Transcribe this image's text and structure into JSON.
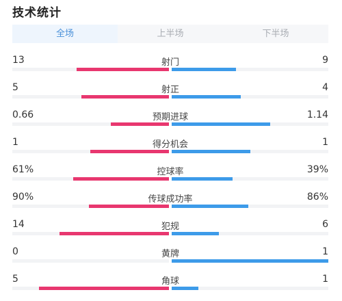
{
  "title": "技术统计",
  "tabs": [
    {
      "label": "全场",
      "active": true
    },
    {
      "label": "上半场",
      "active": false
    },
    {
      "label": "下半场",
      "active": false
    }
  ],
  "colors": {
    "home": "#e8376f",
    "away": "#3d9be9",
    "tab_active": "#4a90d9"
  },
  "stats": [
    {
      "label": "射门",
      "home": "13",
      "away": "9",
      "home_fill": 0.59,
      "away_fill": 0.41
    },
    {
      "label": "射正",
      "home": "5",
      "away": "4",
      "home_fill": 0.56,
      "away_fill": 0.44
    },
    {
      "label": "预期进球",
      "home": "0.66",
      "away": "1.14",
      "home_fill": 0.37,
      "away_fill": 0.63
    },
    {
      "label": "得分机会",
      "home": "1",
      "away": "1",
      "home_fill": 0.5,
      "away_fill": 0.5
    },
    {
      "label": "控球率",
      "home": "61%",
      "away": "39%",
      "home_fill": 0.61,
      "away_fill": 0.39
    },
    {
      "label": "传球成功率",
      "home": "90%",
      "away": "86%",
      "home_fill": 0.51,
      "away_fill": 0.49
    },
    {
      "label": "犯规",
      "home": "14",
      "away": "6",
      "home_fill": 0.7,
      "away_fill": 0.3
    },
    {
      "label": "黄牌",
      "home": "0",
      "away": "1",
      "home_fill": 0.0,
      "away_fill": 1.0
    },
    {
      "label": "角球",
      "home": "5",
      "away": "1",
      "home_fill": 0.83,
      "away_fill": 0.17
    }
  ]
}
